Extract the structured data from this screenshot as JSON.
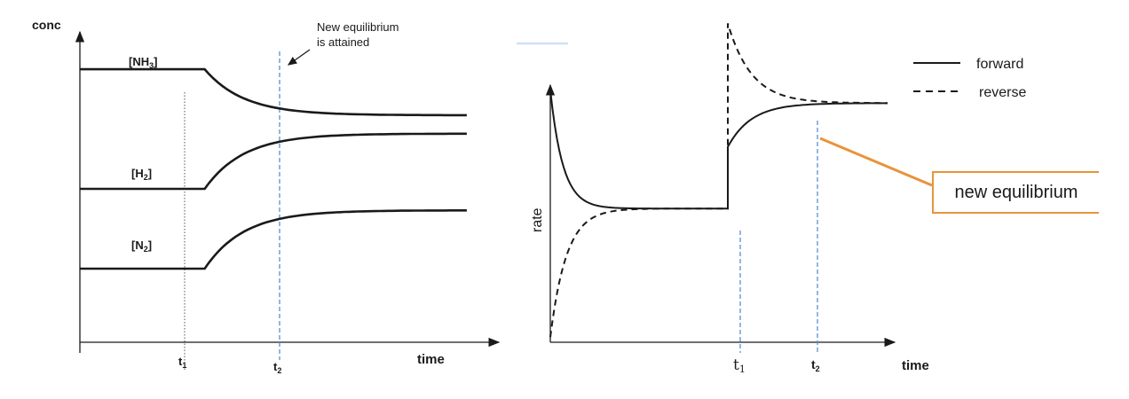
{
  "chart_data": [
    {
      "type": "line",
      "ylabel": "conc",
      "xlabel": "time",
      "x_ticks": [
        {
          "id": "t1",
          "base": "t",
          "sub": "1",
          "x": 1
        },
        {
          "id": "t2",
          "base": "t",
          "sub": "2",
          "x": 2
        }
      ],
      "xlim": [
        0,
        3.2
      ],
      "ylim": [
        0,
        10
      ],
      "annotation": {
        "line1": "New equilibrium",
        "line2": "is attained"
      },
      "series": [
        {
          "name": "[NH3]",
          "label_base": "[NH",
          "label_sub": "3",
          "label_end": "]",
          "initial": 8.9,
          "final": 7.4
        },
        {
          "name": "[H2]",
          "label_base": "[H",
          "label_sub": "2",
          "label_end": "]",
          "initial": 5.0,
          "final": 6.8
        },
        {
          "name": "[N2]",
          "label_base": "[N",
          "label_sub": "2",
          "label_end": "]",
          "initial": 2.4,
          "final": 4.3
        }
      ]
    },
    {
      "type": "line",
      "ylabel": "rate",
      "xlabel": "time",
      "x_ticks": [
        {
          "id": "t1",
          "base": "t",
          "sub": "1",
          "x": 1
        },
        {
          "id": "t2",
          "base": "t",
          "sub": "2",
          "x": 1.4
        }
      ],
      "xlim": [
        0,
        1.9
      ],
      "ylim": [
        0,
        10
      ],
      "legend": [
        {
          "label": "forward",
          "style": "solid"
        },
        {
          "label": "reverse",
          "style": "dashed"
        }
      ],
      "callout": "new equilibrium",
      "series": [
        {
          "name": "forward",
          "start": 9.8,
          "equilibrium1": 5.2,
          "jump_to": 7.6,
          "equilibrium2": 9.3
        },
        {
          "name": "reverse",
          "start": 0.2,
          "equilibrium1": 5.2,
          "jump_to": 12.4,
          "equilibrium2": 9.3
        }
      ],
      "colors": {
        "callout": "#e8943a",
        "guide": "#5b8fd4"
      }
    }
  ]
}
